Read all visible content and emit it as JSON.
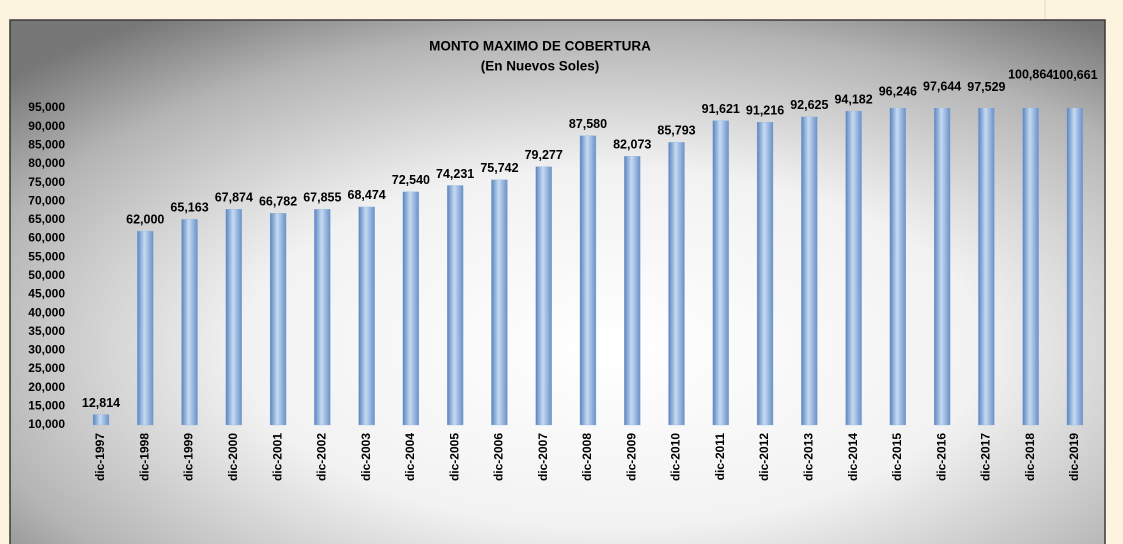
{
  "chart_data": {
    "type": "bar",
    "title": "MONTO MAXIMO DE COBERTURA",
    "subtitle": "(En Nuevos Soles)",
    "categories": [
      "dic-1997",
      "dic-1998",
      "dic-1999",
      "dic-2000",
      "dic-2001",
      "dic-2002",
      "dic-2003",
      "dic-2004",
      "dic-2005",
      "dic-2006",
      "dic-2007",
      "dic-2008",
      "dic-2009",
      "dic-2010",
      "dic-2011",
      "dic-2012",
      "dic-2013",
      "dic-2014",
      "dic-2015",
      "dic-2016",
      "dic-2017",
      "dic-2018",
      "dic-2019"
    ],
    "values": [
      12814,
      62000,
      65163,
      67874,
      66782,
      67855,
      68474,
      72540,
      74231,
      75742,
      79277,
      87580,
      82073,
      85793,
      91621,
      91216,
      92625,
      94182,
      96246,
      97644,
      97529,
      100864,
      100661
    ],
    "value_labels": [
      "12,814",
      "62,000",
      "65,163",
      "67,874",
      "66,782",
      "67,855",
      "68,474",
      "72,540",
      "74,231",
      "75,742",
      "79,277",
      "87,580",
      "82,073",
      "85,793",
      "91,621",
      "91,216",
      "92,625",
      "94,182",
      "96,246",
      "97,644",
      "97,529",
      "100,864",
      "100,661"
    ],
    "color": "#8db3e2",
    "ylim": [
      10000,
      95000
    ],
    "yticks": [
      {
        "value": 10000,
        "label": "10,000"
      },
      {
        "value": 15000,
        "label": "15,000"
      },
      {
        "value": 20000,
        "label": "20,000"
      },
      {
        "value": 25000,
        "label": "25,000"
      },
      {
        "value": 30000,
        "label": "30,000"
      },
      {
        "value": 35000,
        "label": "35,000"
      },
      {
        "value": 40000,
        "label": "40,000"
      },
      {
        "value": 45000,
        "label": "45,000"
      },
      {
        "value": 50000,
        "label": "50,000"
      },
      {
        "value": 55000,
        "label": "55,000"
      },
      {
        "value": 60000,
        "label": "60,000"
      },
      {
        "value": 65000,
        "label": "65,000"
      },
      {
        "value": 70000,
        "label": "70,000"
      },
      {
        "value": 75000,
        "label": "75,000"
      },
      {
        "value": 80000,
        "label": "80,000"
      },
      {
        "value": 85000,
        "label": "85,000"
      },
      {
        "value": 90000,
        "label": "90,000"
      },
      {
        "value": 95000,
        "label": "95,000"
      }
    ],
    "grid": false
  }
}
